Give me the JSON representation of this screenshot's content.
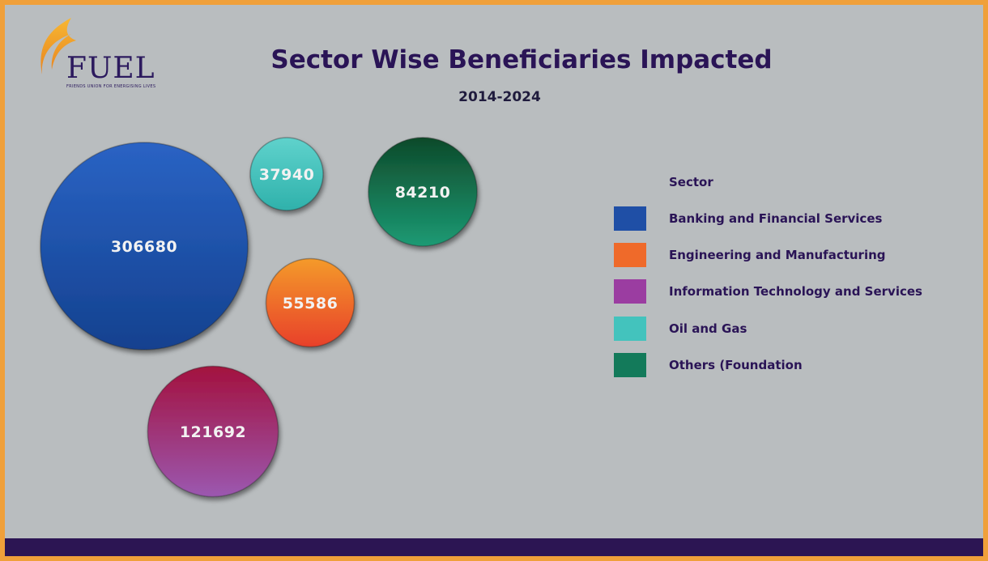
{
  "logo": {
    "name": "FUEL",
    "tagline": "FRIENDS UNION FOR ENERGISING LIVES"
  },
  "chart_data": {
    "type": "bubble",
    "title": "Sector Wise Beneficiaries Impacted",
    "subtitle": "2014-2024",
    "legend_title": "Sector",
    "legend_position": "right",
    "categories": [
      "Banking and Financial Services",
      "Engineering and Manufacturing",
      "Information Technology and Services",
      "Oil and Gas",
      "Others (Foundation"
    ],
    "values": [
      306680,
      55586,
      121692,
      37940,
      84210
    ],
    "colors": [
      "#1f4fa6",
      "#ef6a2a",
      "#9b3da1",
      "#43c3bd",
      "#137a5a"
    ]
  }
}
